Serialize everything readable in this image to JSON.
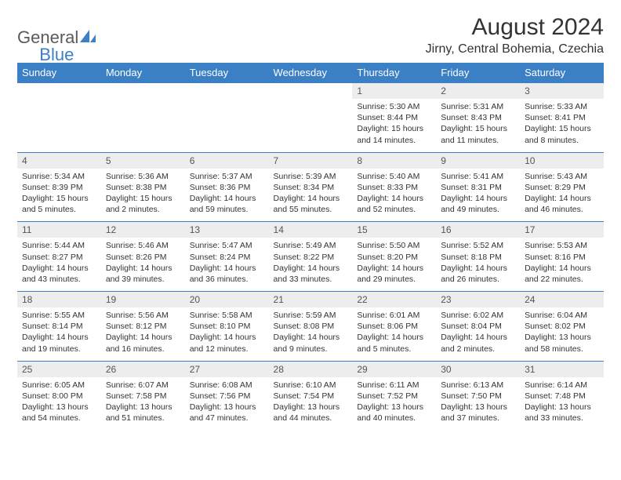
{
  "colors": {
    "brand_blue": "#3b7fc4",
    "header_bg": "#3b7fc4",
    "date_bg": "#ededed",
    "text_dark": "#333333",
    "logo_gray": "#5a5a5a"
  },
  "typography": {
    "title_fontsize": 30,
    "location_fontsize": 16,
    "dayhead_fontsize": 13,
    "cell_fontsize": 10.5
  },
  "logo": {
    "part1": "General",
    "part2": "Blue"
  },
  "title": "August 2024",
  "location": "Jirny, Central Bohemia, Czechia",
  "day_names": [
    "Sunday",
    "Monday",
    "Tuesday",
    "Wednesday",
    "Thursday",
    "Friday",
    "Saturday"
  ],
  "weeks": [
    [
      {
        "date": "",
        "lines": []
      },
      {
        "date": "",
        "lines": []
      },
      {
        "date": "",
        "lines": []
      },
      {
        "date": "",
        "lines": []
      },
      {
        "date": "1",
        "lines": [
          "Sunrise: 5:30 AM",
          "Sunset: 8:44 PM",
          "Daylight: 15 hours and 14 minutes."
        ]
      },
      {
        "date": "2",
        "lines": [
          "Sunrise: 5:31 AM",
          "Sunset: 8:43 PM",
          "Daylight: 15 hours and 11 minutes."
        ]
      },
      {
        "date": "3",
        "lines": [
          "Sunrise: 5:33 AM",
          "Sunset: 8:41 PM",
          "Daylight: 15 hours and 8 minutes."
        ]
      }
    ],
    [
      {
        "date": "4",
        "lines": [
          "Sunrise: 5:34 AM",
          "Sunset: 8:39 PM",
          "Daylight: 15 hours and 5 minutes."
        ]
      },
      {
        "date": "5",
        "lines": [
          "Sunrise: 5:36 AM",
          "Sunset: 8:38 PM",
          "Daylight: 15 hours and 2 minutes."
        ]
      },
      {
        "date": "6",
        "lines": [
          "Sunrise: 5:37 AM",
          "Sunset: 8:36 PM",
          "Daylight: 14 hours and 59 minutes."
        ]
      },
      {
        "date": "7",
        "lines": [
          "Sunrise: 5:39 AM",
          "Sunset: 8:34 PM",
          "Daylight: 14 hours and 55 minutes."
        ]
      },
      {
        "date": "8",
        "lines": [
          "Sunrise: 5:40 AM",
          "Sunset: 8:33 PM",
          "Daylight: 14 hours and 52 minutes."
        ]
      },
      {
        "date": "9",
        "lines": [
          "Sunrise: 5:41 AM",
          "Sunset: 8:31 PM",
          "Daylight: 14 hours and 49 minutes."
        ]
      },
      {
        "date": "10",
        "lines": [
          "Sunrise: 5:43 AM",
          "Sunset: 8:29 PM",
          "Daylight: 14 hours and 46 minutes."
        ]
      }
    ],
    [
      {
        "date": "11",
        "lines": [
          "Sunrise: 5:44 AM",
          "Sunset: 8:27 PM",
          "Daylight: 14 hours and 43 minutes."
        ]
      },
      {
        "date": "12",
        "lines": [
          "Sunrise: 5:46 AM",
          "Sunset: 8:26 PM",
          "Daylight: 14 hours and 39 minutes."
        ]
      },
      {
        "date": "13",
        "lines": [
          "Sunrise: 5:47 AM",
          "Sunset: 8:24 PM",
          "Daylight: 14 hours and 36 minutes."
        ]
      },
      {
        "date": "14",
        "lines": [
          "Sunrise: 5:49 AM",
          "Sunset: 8:22 PM",
          "Daylight: 14 hours and 33 minutes."
        ]
      },
      {
        "date": "15",
        "lines": [
          "Sunrise: 5:50 AM",
          "Sunset: 8:20 PM",
          "Daylight: 14 hours and 29 minutes."
        ]
      },
      {
        "date": "16",
        "lines": [
          "Sunrise: 5:52 AM",
          "Sunset: 8:18 PM",
          "Daylight: 14 hours and 26 minutes."
        ]
      },
      {
        "date": "17",
        "lines": [
          "Sunrise: 5:53 AM",
          "Sunset: 8:16 PM",
          "Daylight: 14 hours and 22 minutes."
        ]
      }
    ],
    [
      {
        "date": "18",
        "lines": [
          "Sunrise: 5:55 AM",
          "Sunset: 8:14 PM",
          "Daylight: 14 hours and 19 minutes."
        ]
      },
      {
        "date": "19",
        "lines": [
          "Sunrise: 5:56 AM",
          "Sunset: 8:12 PM",
          "Daylight: 14 hours and 16 minutes."
        ]
      },
      {
        "date": "20",
        "lines": [
          "Sunrise: 5:58 AM",
          "Sunset: 8:10 PM",
          "Daylight: 14 hours and 12 minutes."
        ]
      },
      {
        "date": "21",
        "lines": [
          "Sunrise: 5:59 AM",
          "Sunset: 8:08 PM",
          "Daylight: 14 hours and 9 minutes."
        ]
      },
      {
        "date": "22",
        "lines": [
          "Sunrise: 6:01 AM",
          "Sunset: 8:06 PM",
          "Daylight: 14 hours and 5 minutes."
        ]
      },
      {
        "date": "23",
        "lines": [
          "Sunrise: 6:02 AM",
          "Sunset: 8:04 PM",
          "Daylight: 14 hours and 2 minutes."
        ]
      },
      {
        "date": "24",
        "lines": [
          "Sunrise: 6:04 AM",
          "Sunset: 8:02 PM",
          "Daylight: 13 hours and 58 minutes."
        ]
      }
    ],
    [
      {
        "date": "25",
        "lines": [
          "Sunrise: 6:05 AM",
          "Sunset: 8:00 PM",
          "Daylight: 13 hours and 54 minutes."
        ]
      },
      {
        "date": "26",
        "lines": [
          "Sunrise: 6:07 AM",
          "Sunset: 7:58 PM",
          "Daylight: 13 hours and 51 minutes."
        ]
      },
      {
        "date": "27",
        "lines": [
          "Sunrise: 6:08 AM",
          "Sunset: 7:56 PM",
          "Daylight: 13 hours and 47 minutes."
        ]
      },
      {
        "date": "28",
        "lines": [
          "Sunrise: 6:10 AM",
          "Sunset: 7:54 PM",
          "Daylight: 13 hours and 44 minutes."
        ]
      },
      {
        "date": "29",
        "lines": [
          "Sunrise: 6:11 AM",
          "Sunset: 7:52 PM",
          "Daylight: 13 hours and 40 minutes."
        ]
      },
      {
        "date": "30",
        "lines": [
          "Sunrise: 6:13 AM",
          "Sunset: 7:50 PM",
          "Daylight: 13 hours and 37 minutes."
        ]
      },
      {
        "date": "31",
        "lines": [
          "Sunrise: 6:14 AM",
          "Sunset: 7:48 PM",
          "Daylight: 13 hours and 33 minutes."
        ]
      }
    ]
  ]
}
